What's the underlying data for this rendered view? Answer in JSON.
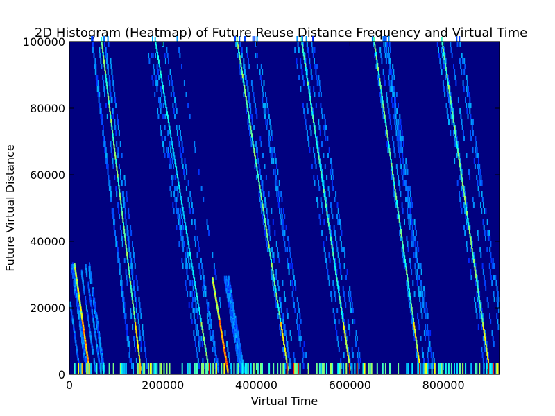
{
  "chart_data": {
    "type": "heatmap",
    "title": "2D Histogram (Heatmap) of Future Reuse Distance Frequency and Virtual Time",
    "xlabel": "Virtual Time",
    "ylabel": "Future Virtual Distance",
    "xlim": [
      0,
      920000
    ],
    "ylim": [
      0,
      100000
    ],
    "x_ticks": [
      0,
      200000,
      400000,
      600000,
      800000
    ],
    "x_tick_labels": [
      "0",
      "200000",
      "400000",
      "600000",
      "800000"
    ],
    "y_ticks": [
      0,
      20000,
      40000,
      60000,
      80000,
      100000
    ],
    "y_tick_labels": [
      "0",
      "20000",
      "40000",
      "60000",
      "80000",
      "100000"
    ],
    "colormap": "jet",
    "background_color": "#00007f",
    "grid": false,
    "legend": "none",
    "main_streaks": [
      {
        "x_start": 10000,
        "x_end": 42000,
        "y_top": 32000,
        "intensity": 0.62
      },
      {
        "x_start": 67000,
        "x_end": 152000,
        "y_top": 100000,
        "intensity": 0.5
      },
      {
        "x_start": 182000,
        "x_end": 298000,
        "y_top": 100000,
        "intensity": 0.38
      },
      {
        "x_start": 305000,
        "x_end": 338000,
        "y_top": 28000,
        "intensity": 0.62
      },
      {
        "x_start": 357000,
        "x_end": 467000,
        "y_top": 100000,
        "intensity": 0.5
      },
      {
        "x_start": 495000,
        "x_end": 600000,
        "y_top": 100000,
        "intensity": 0.45
      },
      {
        "x_start": 650000,
        "x_end": 750000,
        "y_top": 100000,
        "intensity": 0.48
      },
      {
        "x_start": 795000,
        "x_end": 898000,
        "y_top": 100000,
        "intensity": 0.5
      }
    ],
    "bottom_hotspots": [
      {
        "x": 18000,
        "intensity": 0.62
      },
      {
        "x": 26000,
        "intensity": 0.7
      },
      {
        "x": 36000,
        "intensity": 0.62
      },
      {
        "x": 41000,
        "intensity": 0.7
      },
      {
        "x": 150000,
        "intensity": 0.7
      },
      {
        "x": 158000,
        "intensity": 0.62
      },
      {
        "x": 172000,
        "intensity": 0.62
      },
      {
        "x": 298000,
        "intensity": 0.95
      },
      {
        "x": 313000,
        "intensity": 0.62
      },
      {
        "x": 330000,
        "intensity": 0.62
      },
      {
        "x": 464000,
        "intensity": 0.95
      },
      {
        "x": 478000,
        "intensity": 0.85
      },
      {
        "x": 488000,
        "intensity": 0.85
      },
      {
        "x": 598000,
        "intensity": 0.95
      },
      {
        "x": 614000,
        "intensity": 0.95
      },
      {
        "x": 630000,
        "intensity": 0.62
      },
      {
        "x": 748000,
        "intensity": 0.95
      },
      {
        "x": 762000,
        "intensity": 0.62
      },
      {
        "x": 780000,
        "intensity": 0.62
      },
      {
        "x": 895000,
        "intensity": 0.95
      },
      {
        "x": 905000,
        "intensity": 0.85
      },
      {
        "x": 915000,
        "intensity": 0.62
      }
    ]
  }
}
